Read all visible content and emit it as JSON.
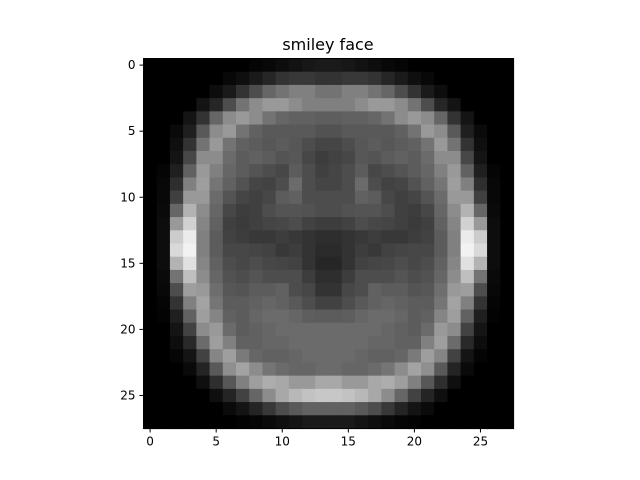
{
  "chart_data": {
    "type": "heatmap",
    "title": "smiley face",
    "colormap": "gray",
    "xlabel": "",
    "ylabel": "",
    "rows": 28,
    "cols": 28,
    "xlim": [
      -0.5,
      27.5
    ],
    "ylim": [
      27.5,
      -0.5
    ],
    "x_ticks": [
      0,
      5,
      10,
      15,
      20,
      25
    ],
    "y_ticks": [
      0,
      5,
      10,
      15,
      20,
      25
    ],
    "value_range": [
      0,
      1
    ],
    "values": [
      [
        0,
        0,
        0,
        0,
        0,
        0,
        0,
        0,
        0.02,
        0.03,
        0.05,
        0.07,
        0.09,
        0.1,
        0.1,
        0.09,
        0.07,
        0.05,
        0.03,
        0.02,
        0,
        0,
        0,
        0,
        0,
        0,
        0,
        0
      ],
      [
        0,
        0,
        0,
        0,
        0,
        0,
        0.03,
        0.06,
        0.1,
        0.15,
        0.2,
        0.22,
        0.22,
        0.2,
        0.2,
        0.22,
        0.22,
        0.2,
        0.15,
        0.1,
        0.06,
        0.03,
        0,
        0,
        0,
        0,
        0,
        0
      ],
      [
        0,
        0,
        0,
        0,
        0,
        0.05,
        0.1,
        0.2,
        0.3,
        0.4,
        0.45,
        0.5,
        0.5,
        0.45,
        0.45,
        0.5,
        0.5,
        0.45,
        0.4,
        0.3,
        0.2,
        0.1,
        0.05,
        0,
        0,
        0,
        0,
        0
      ],
      [
        0,
        0,
        0,
        0,
        0.08,
        0.15,
        0.3,
        0.45,
        0.55,
        0.6,
        0.6,
        0.55,
        0.5,
        0.5,
        0.5,
        0.5,
        0.55,
        0.6,
        0.6,
        0.55,
        0.45,
        0.3,
        0.15,
        0.08,
        0,
        0,
        0,
        0
      ],
      [
        0,
        0,
        0,
        0.08,
        0.2,
        0.4,
        0.55,
        0.6,
        0.55,
        0.45,
        0.4,
        0.38,
        0.38,
        0.37,
        0.37,
        0.38,
        0.38,
        0.4,
        0.45,
        0.55,
        0.6,
        0.55,
        0.4,
        0.2,
        0.08,
        0,
        0,
        0
      ],
      [
        0,
        0,
        0.04,
        0.12,
        0.35,
        0.55,
        0.6,
        0.45,
        0.38,
        0.35,
        0.35,
        0.35,
        0.35,
        0.32,
        0.32,
        0.35,
        0.35,
        0.35,
        0.35,
        0.38,
        0.45,
        0.6,
        0.55,
        0.35,
        0.12,
        0.04,
        0,
        0
      ],
      [
        0,
        0,
        0.06,
        0.2,
        0.45,
        0.6,
        0.45,
        0.38,
        0.36,
        0.34,
        0.36,
        0.34,
        0.3,
        0.27,
        0.27,
        0.3,
        0.34,
        0.36,
        0.34,
        0.36,
        0.38,
        0.45,
        0.6,
        0.45,
        0.2,
        0.06,
        0,
        0
      ],
      [
        0,
        0,
        0.08,
        0.28,
        0.55,
        0.55,
        0.42,
        0.36,
        0.38,
        0.36,
        0.33,
        0.34,
        0.28,
        0.24,
        0.26,
        0.28,
        0.34,
        0.33,
        0.36,
        0.38,
        0.36,
        0.42,
        0.55,
        0.55,
        0.28,
        0.08,
        0,
        0
      ],
      [
        0,
        0.02,
        0.12,
        0.38,
        0.6,
        0.5,
        0.4,
        0.36,
        0.33,
        0.3,
        0.28,
        0.36,
        0.3,
        0.25,
        0.27,
        0.3,
        0.36,
        0.28,
        0.3,
        0.33,
        0.36,
        0.4,
        0.5,
        0.6,
        0.38,
        0.12,
        0.02,
        0
      ],
      [
        0,
        0.03,
        0.18,
        0.5,
        0.62,
        0.46,
        0.38,
        0.32,
        0.27,
        0.26,
        0.3,
        0.42,
        0.3,
        0.27,
        0.27,
        0.3,
        0.42,
        0.3,
        0.26,
        0.27,
        0.32,
        0.38,
        0.46,
        0.62,
        0.5,
        0.18,
        0.03,
        0
      ],
      [
        0,
        0.03,
        0.25,
        0.6,
        0.6,
        0.42,
        0.33,
        0.27,
        0.25,
        0.28,
        0.36,
        0.38,
        0.3,
        0.3,
        0.3,
        0.3,
        0.38,
        0.36,
        0.28,
        0.25,
        0.27,
        0.33,
        0.42,
        0.6,
        0.6,
        0.25,
        0.03,
        0
      ],
      [
        0,
        0.04,
        0.4,
        0.7,
        0.55,
        0.4,
        0.28,
        0.24,
        0.25,
        0.3,
        0.33,
        0.33,
        0.32,
        0.3,
        0.3,
        0.32,
        0.33,
        0.33,
        0.3,
        0.25,
        0.24,
        0.28,
        0.4,
        0.55,
        0.7,
        0.4,
        0.04,
        0
      ],
      [
        0,
        0.05,
        0.6,
        0.82,
        0.52,
        0.38,
        0.25,
        0.23,
        0.25,
        0.27,
        0.28,
        0.3,
        0.26,
        0.24,
        0.24,
        0.26,
        0.3,
        0.28,
        0.27,
        0.25,
        0.23,
        0.25,
        0.38,
        0.52,
        0.82,
        0.6,
        0.05,
        0
      ],
      [
        0,
        0.05,
        0.8,
        0.92,
        0.5,
        0.36,
        0.26,
        0.24,
        0.22,
        0.22,
        0.24,
        0.22,
        0.2,
        0.18,
        0.18,
        0.2,
        0.22,
        0.24,
        0.22,
        0.22,
        0.24,
        0.26,
        0.36,
        0.5,
        0.92,
        0.8,
        0.05,
        0
      ],
      [
        0,
        0.05,
        0.85,
        0.95,
        0.5,
        0.36,
        0.28,
        0.28,
        0.27,
        0.26,
        0.22,
        0.24,
        0.2,
        0.17,
        0.17,
        0.2,
        0.24,
        0.22,
        0.26,
        0.27,
        0.28,
        0.28,
        0.36,
        0.5,
        0.95,
        0.85,
        0.05,
        0
      ],
      [
        0,
        0.05,
        0.7,
        0.88,
        0.52,
        0.38,
        0.3,
        0.28,
        0.3,
        0.28,
        0.27,
        0.26,
        0.2,
        0.15,
        0.15,
        0.2,
        0.26,
        0.27,
        0.28,
        0.3,
        0.28,
        0.3,
        0.38,
        0.52,
        0.88,
        0.7,
        0.05,
        0
      ],
      [
        0,
        0.04,
        0.45,
        0.75,
        0.55,
        0.4,
        0.32,
        0.3,
        0.33,
        0.3,
        0.3,
        0.3,
        0.24,
        0.18,
        0.18,
        0.24,
        0.3,
        0.3,
        0.3,
        0.33,
        0.3,
        0.32,
        0.4,
        0.55,
        0.75,
        0.45,
        0.04,
        0
      ],
      [
        0,
        0.03,
        0.3,
        0.62,
        0.6,
        0.43,
        0.34,
        0.33,
        0.36,
        0.36,
        0.38,
        0.3,
        0.28,
        0.2,
        0.2,
        0.28,
        0.3,
        0.38,
        0.36,
        0.36,
        0.33,
        0.34,
        0.43,
        0.6,
        0.62,
        0.3,
        0.03,
        0
      ],
      [
        0,
        0.02,
        0.2,
        0.5,
        0.64,
        0.46,
        0.36,
        0.36,
        0.38,
        0.4,
        0.38,
        0.35,
        0.3,
        0.26,
        0.26,
        0.3,
        0.35,
        0.38,
        0.4,
        0.38,
        0.36,
        0.36,
        0.46,
        0.64,
        0.5,
        0.2,
        0.02,
        0
      ],
      [
        0,
        0.01,
        0.12,
        0.38,
        0.62,
        0.52,
        0.38,
        0.36,
        0.4,
        0.42,
        0.42,
        0.4,
        0.37,
        0.36,
        0.36,
        0.37,
        0.4,
        0.42,
        0.42,
        0.4,
        0.36,
        0.38,
        0.52,
        0.62,
        0.38,
        0.12,
        0.01,
        0
      ],
      [
        0,
        0,
        0.08,
        0.26,
        0.55,
        0.6,
        0.42,
        0.36,
        0.38,
        0.4,
        0.42,
        0.42,
        0.42,
        0.42,
        0.42,
        0.42,
        0.42,
        0.42,
        0.4,
        0.38,
        0.36,
        0.42,
        0.6,
        0.55,
        0.26,
        0.08,
        0,
        0
      ],
      [
        0,
        0,
        0.05,
        0.16,
        0.42,
        0.62,
        0.5,
        0.38,
        0.38,
        0.4,
        0.4,
        0.42,
        0.42,
        0.42,
        0.42,
        0.42,
        0.42,
        0.4,
        0.4,
        0.38,
        0.38,
        0.5,
        0.62,
        0.42,
        0.16,
        0.05,
        0,
        0
      ],
      [
        0,
        0,
        0.02,
        0.08,
        0.26,
        0.52,
        0.62,
        0.48,
        0.4,
        0.38,
        0.38,
        0.4,
        0.42,
        0.42,
        0.42,
        0.42,
        0.4,
        0.38,
        0.38,
        0.4,
        0.48,
        0.62,
        0.52,
        0.26,
        0.08,
        0.02,
        0,
        0
      ],
      [
        0,
        0,
        0,
        0.04,
        0.14,
        0.35,
        0.56,
        0.64,
        0.55,
        0.46,
        0.42,
        0.4,
        0.4,
        0.42,
        0.42,
        0.4,
        0.4,
        0.42,
        0.46,
        0.55,
        0.64,
        0.56,
        0.35,
        0.14,
        0.04,
        0,
        0,
        0
      ],
      [
        0,
        0,
        0,
        0,
        0.06,
        0.18,
        0.34,
        0.5,
        0.62,
        0.68,
        0.66,
        0.6,
        0.6,
        0.66,
        0.66,
        0.6,
        0.6,
        0.66,
        0.68,
        0.62,
        0.5,
        0.34,
        0.18,
        0.06,
        0,
        0,
        0,
        0
      ],
      [
        0,
        0,
        0,
        0,
        0,
        0.06,
        0.14,
        0.26,
        0.4,
        0.55,
        0.66,
        0.72,
        0.76,
        0.78,
        0.78,
        0.76,
        0.72,
        0.66,
        0.55,
        0.4,
        0.26,
        0.14,
        0.06,
        0,
        0,
        0,
        0,
        0
      ],
      [
        0,
        0,
        0,
        0,
        0,
        0,
        0.04,
        0.08,
        0.14,
        0.22,
        0.3,
        0.35,
        0.38,
        0.38,
        0.38,
        0.38,
        0.35,
        0.3,
        0.22,
        0.14,
        0.08,
        0.04,
        0,
        0,
        0,
        0,
        0,
        0
      ],
      [
        0,
        0,
        0,
        0,
        0,
        0,
        0,
        0.01,
        0.02,
        0.04,
        0.06,
        0.08,
        0.1,
        0.1,
        0.1,
        0.1,
        0.08,
        0.06,
        0.04,
        0.02,
        0.01,
        0,
        0,
        0,
        0,
        0,
        0,
        0
      ]
    ]
  }
}
